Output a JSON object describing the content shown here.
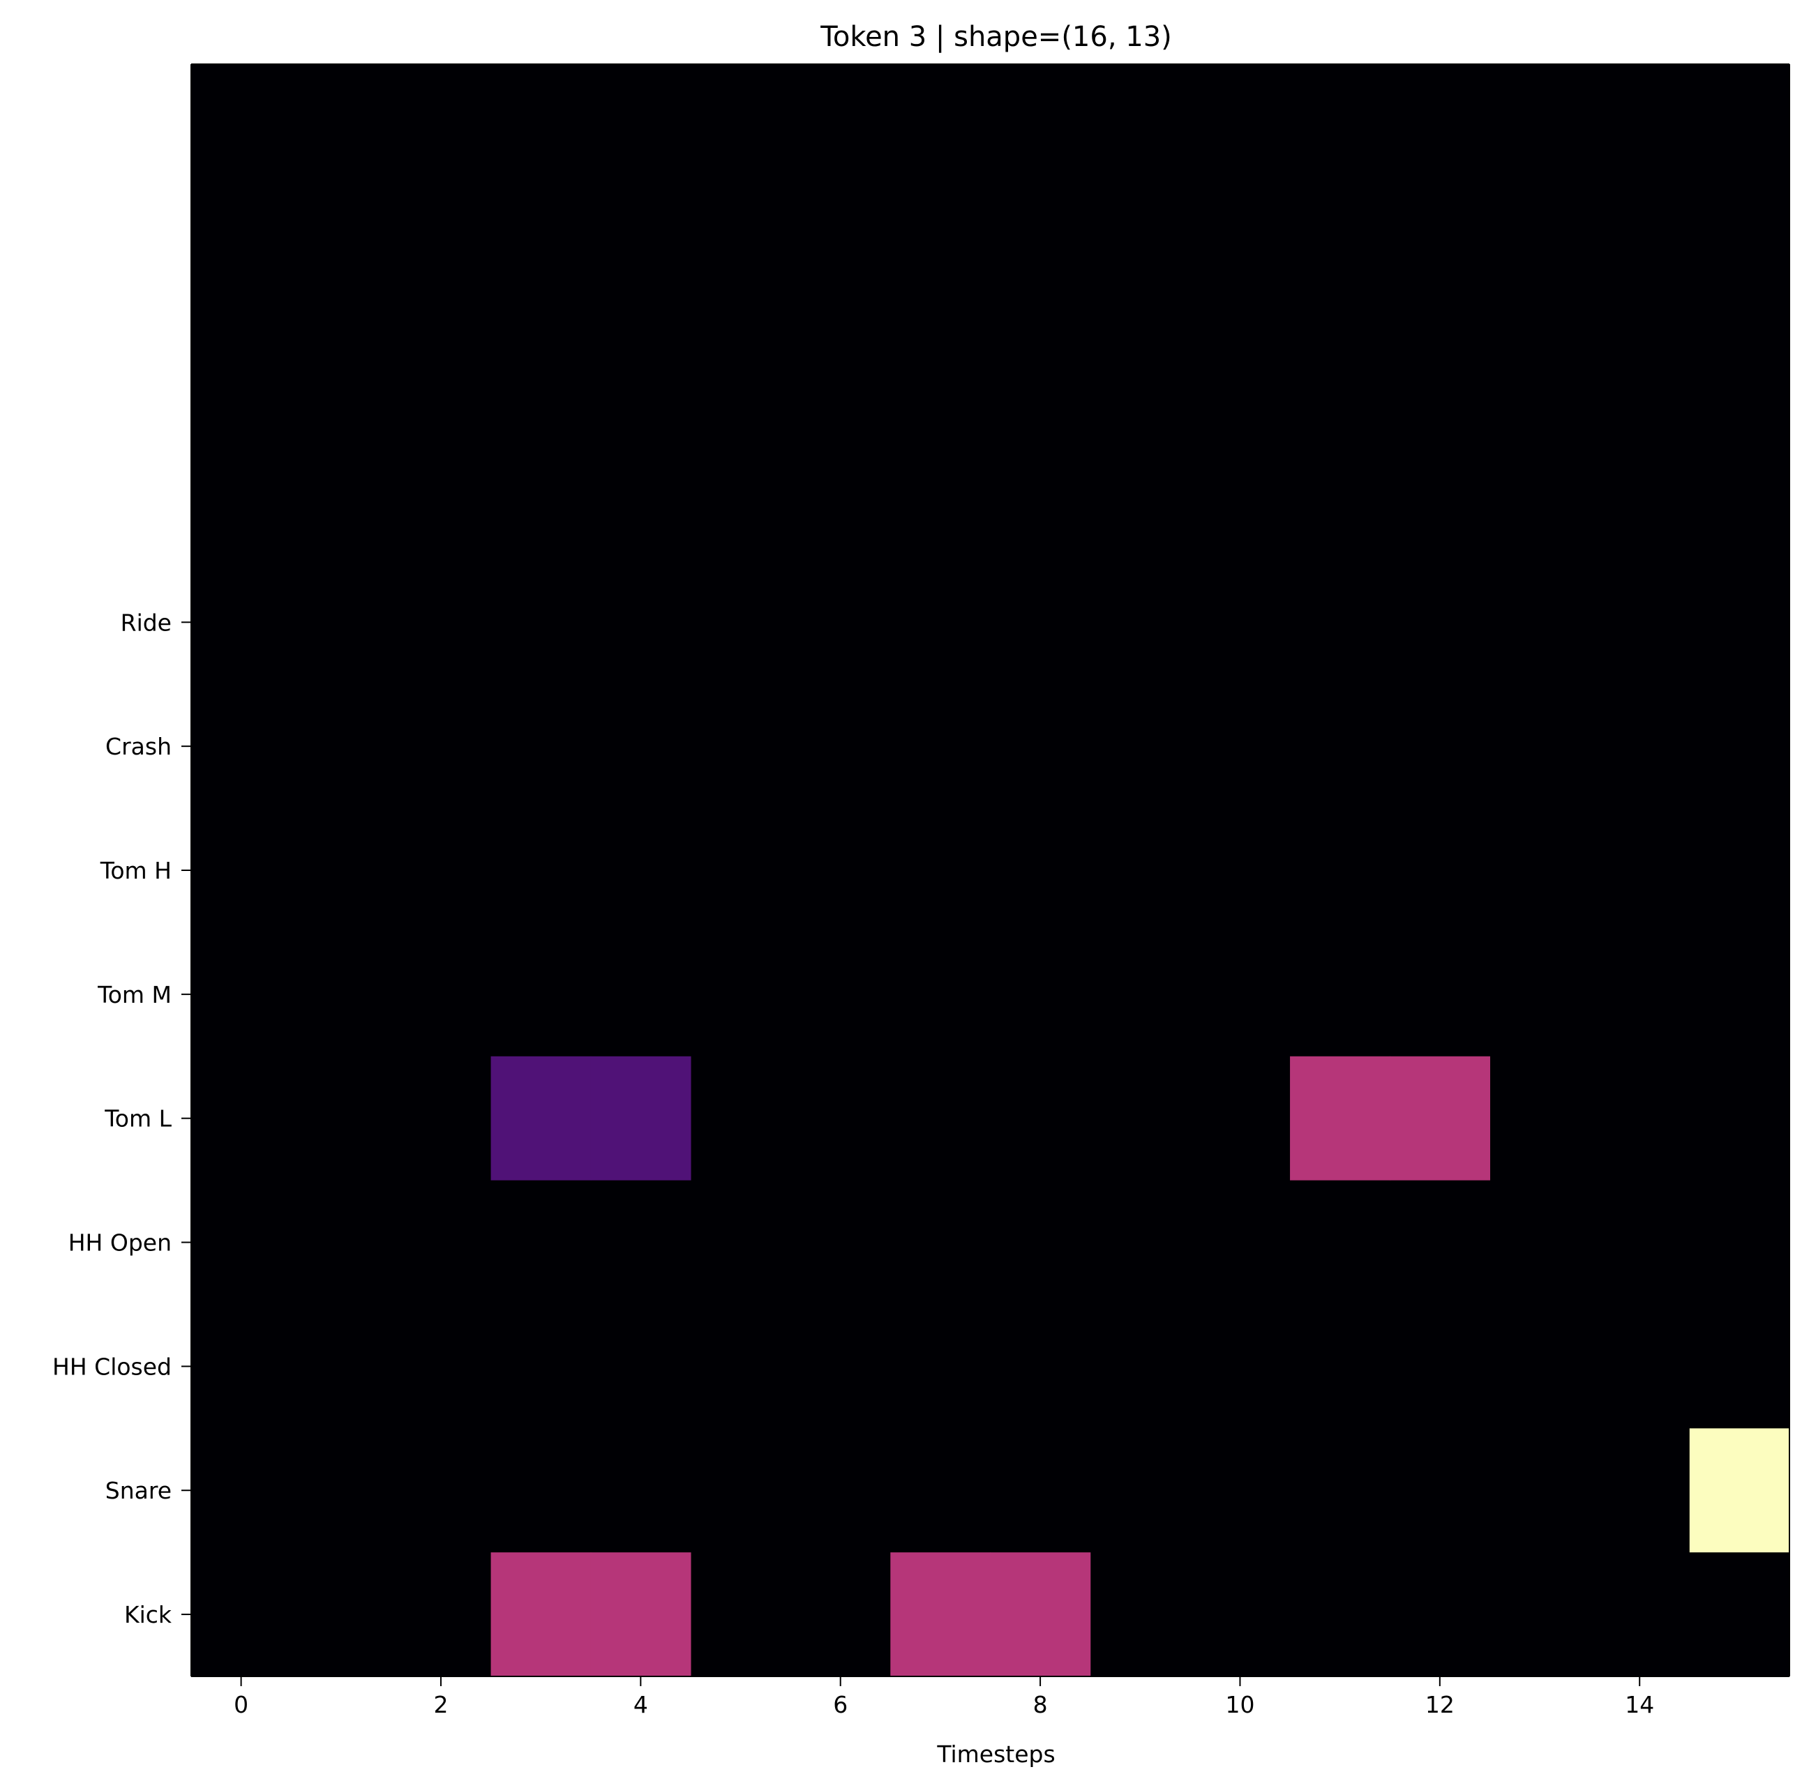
{
  "chart_data": {
    "type": "heatmap",
    "title": "Token 3 | shape=(16, 13)",
    "xlabel": "Timesteps",
    "ylabel": "",
    "xlim": [
      -0.5,
      15.5
    ],
    "ylim": [
      12.5,
      -0.5
    ],
    "rows": 13,
    "cols": 16,
    "x_ticks": [
      0,
      2,
      4,
      6,
      8,
      10,
      12,
      14
    ],
    "y_ticks": [
      {
        "index": 4,
        "label": "Ride"
      },
      {
        "index": 5,
        "label": "Crash"
      },
      {
        "index": 6,
        "label": "Tom H"
      },
      {
        "index": 7,
        "label": "Tom M"
      },
      {
        "index": 8,
        "label": "Tom L"
      },
      {
        "index": 9,
        "label": "HH Open"
      },
      {
        "index": 10,
        "label": "HH Closed"
      },
      {
        "index": 11,
        "label": "Snare"
      },
      {
        "index": 12,
        "label": "Kick"
      }
    ],
    "background_color": "#000004",
    "nonzero_cells": [
      {
        "x": [
          3,
          4
        ],
        "y": 8,
        "label": "Tom L",
        "color": "#501277"
      },
      {
        "x": [
          11,
          12
        ],
        "y": 8,
        "label": "Tom L",
        "color": "#b63679"
      },
      {
        "x": [
          15
        ],
        "y": 11,
        "label": "Snare",
        "color": "#fcfdbf"
      },
      {
        "x": [
          3,
          4
        ],
        "y": 12,
        "label": "Kick",
        "color": "#b63679"
      },
      {
        "x": [
          7,
          8
        ],
        "y": 12,
        "label": "Kick",
        "color": "#b63679"
      }
    ]
  }
}
